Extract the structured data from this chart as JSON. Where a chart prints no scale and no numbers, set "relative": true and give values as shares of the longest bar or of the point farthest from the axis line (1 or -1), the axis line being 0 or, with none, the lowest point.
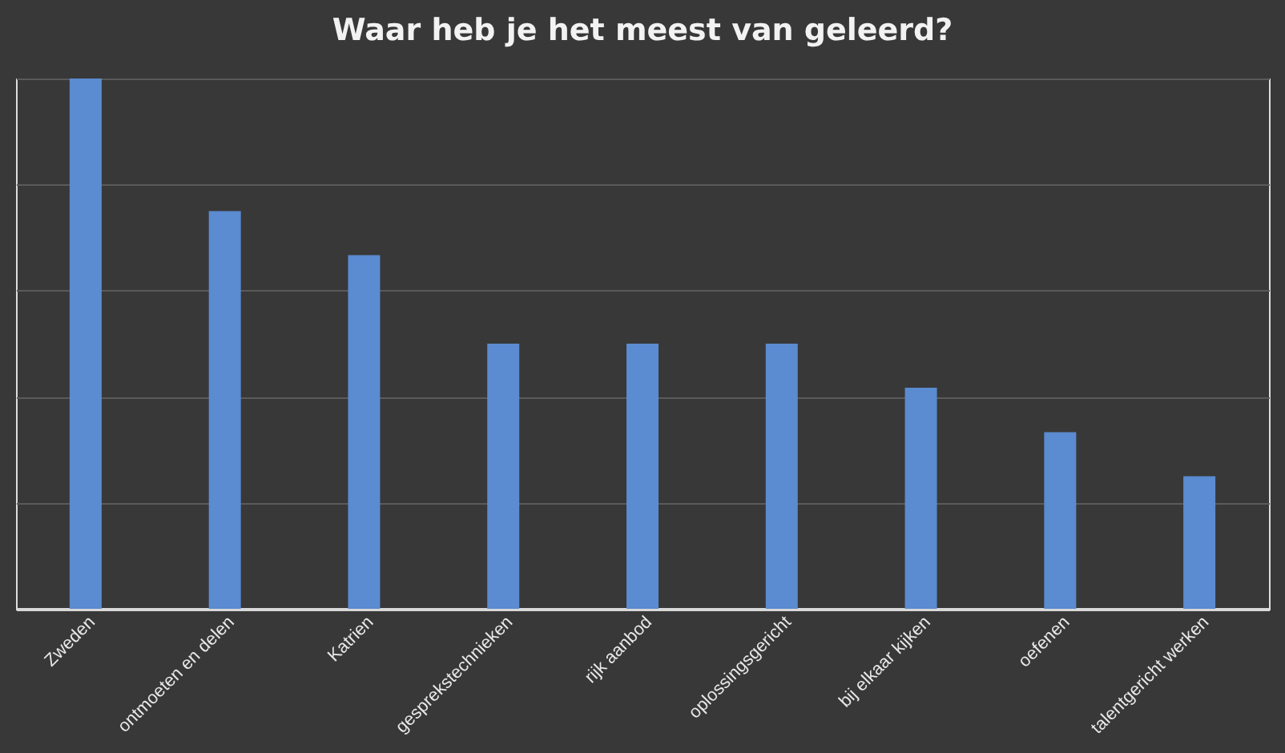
{
  "chart_data": {
    "type": "bar",
    "title": "Waar heb je het meest van geleerd?",
    "categories": [
      "Zweden",
      "ontmoeten en delen",
      "Katrien",
      "gesprekstechnieken",
      "rijk aanbod",
      "oplossingsgericht",
      "bij elkaar kijken",
      "oefenen",
      "talentgericht werken"
    ],
    "values": [
      1,
      0.75,
      0.667,
      0.5,
      0.5,
      0.5,
      0.417,
      0.333,
      0.25
    ],
    "color": "#5b8bd0",
    "relative": true,
    "grid": true
  }
}
